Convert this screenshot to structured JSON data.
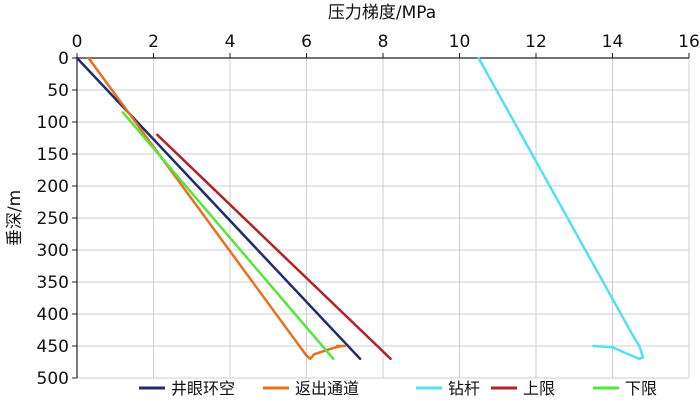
{
  "chart_data": {
    "type": "line",
    "xlabel": "压力梯度/MPa",
    "ylabel": "垂深/m",
    "xlim": [
      0,
      16
    ],
    "ylim": [
      0,
      500
    ],
    "y_inverted": true,
    "x_axis_position": "top",
    "x_ticks": [
      "0",
      "2",
      "4",
      "6",
      "8",
      "10",
      "12",
      "14",
      "16"
    ],
    "y_ticks": [
      "0",
      "50",
      "100",
      "150",
      "200",
      "250",
      "300",
      "350",
      "400",
      "450",
      "500"
    ],
    "grid": true,
    "legend_position": "bottom",
    "series": [
      {
        "name": "井眼环空",
        "color": "#1f2d6e",
        "x": [
          0.0,
          7.4
        ],
        "y": [
          0,
          470
        ]
      },
      {
        "name": "返出通道",
        "color": "#e8701e",
        "x": [
          0.3,
          6.0,
          6.1,
          6.2,
          6.6,
          6.9,
          7.0,
          6.8
        ],
        "y": [
          0,
          465,
          470,
          463,
          455,
          450,
          450,
          450
        ]
      },
      {
        "name": "钻杆",
        "color": "#55e0f0",
        "x": [
          10.5,
          14.5,
          14.7,
          14.8,
          14.7,
          14.5,
          14.0,
          13.5
        ],
        "y": [
          0,
          430,
          450,
          468,
          470,
          465,
          452,
          450
        ]
      },
      {
        "name": "上限",
        "color": "#b5232a",
        "x": [
          2.1,
          8.2
        ],
        "y": [
          120,
          470
        ]
      },
      {
        "name": "下限",
        "color": "#55e63c",
        "x": [
          1.2,
          6.7
        ],
        "y": [
          85,
          470
        ]
      }
    ]
  }
}
